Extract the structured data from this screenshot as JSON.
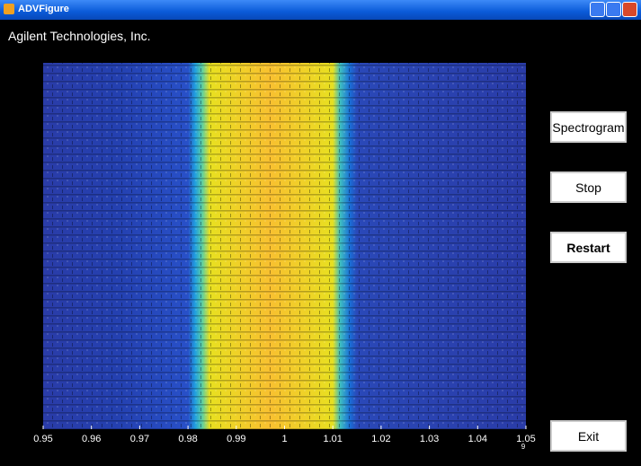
{
  "window": {
    "title": "ADVFigure"
  },
  "header": {
    "company": "Agilent Technologies, Inc."
  },
  "buttons": [
    "Spectrogram",
    "Stop",
    "Restart",
    "Exit"
  ],
  "chart_data": {
    "type": "heatmap",
    "xlim": [
      0.95,
      1.05
    ],
    "xticks": [
      0.95,
      0.96,
      0.97,
      0.98,
      0.99,
      1,
      1.01,
      1.02,
      1.03,
      1.04,
      1.05
    ],
    "x_exponent": 9
  }
}
